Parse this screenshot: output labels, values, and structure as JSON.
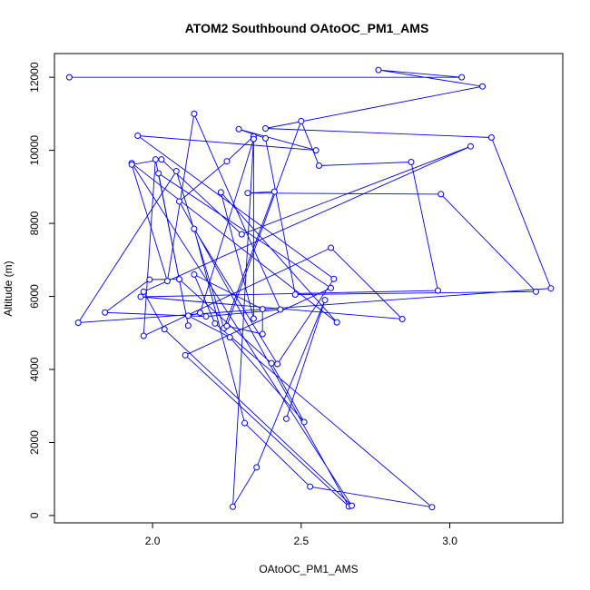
{
  "chart_data": {
    "type": "scatter",
    "title": "ATOM2 Southbound OAtoOC_PM1_AMS",
    "xlabel": "OAtoOC_PM1_AMS",
    "ylabel": "Altitude (m)",
    "xlim": [
      1.67,
      3.38
    ],
    "ylim": [
      -200,
      12650
    ],
    "xticks": [
      2.0,
      2.5,
      3.0
    ],
    "xtick_labels": [
      "2.0",
      "2.5",
      "3.0"
    ],
    "yticks": [
      0,
      2000,
      4000,
      6000,
      8000,
      10000,
      12000
    ],
    "ytick_labels": [
      "0",
      "2000",
      "4000",
      "6000",
      "8000",
      "10000",
      "12000"
    ],
    "grid": false,
    "legend": "none",
    "line_color": "#0000ff",
    "marker": "open-circle",
    "series": [
      {
        "x": [
          1.72,
          3.04,
          2.76,
          3.11,
          2.38,
          3.14,
          3.34,
          1.75,
          2.08,
          2.24,
          2.41,
          2.32,
          2.97,
          3.29,
          2.48,
          2.38,
          2.29,
          2.55,
          1.95,
          2.61,
          2.42,
          2.14,
          2.31,
          2.53,
          2.94,
          2.21,
          2.14,
          2.37,
          2.37,
          2.25,
          2.5,
          2.56,
          2.87,
          2.96,
          1.96,
          2.84,
          2.6,
          1.97,
          2.01,
          2.12,
          2.02,
          2.6,
          2.11,
          2.66,
          2.09,
          2.25,
          2.34,
          2.34,
          2.23,
          2.62,
          1.93,
          2.67,
          2.04,
          1.97,
          3.07,
          2.3,
          2.03,
          1.93,
          2.05,
          2.14,
          2.43,
          2.18,
          1.84,
          1.99,
          2.09,
          2.4,
          2.51,
          2.26,
          2.12,
          2.16,
          2.34,
          2.27,
          2.35,
          2.58,
          2.45
        ],
        "y": [
          12000,
          12000,
          12200,
          11750,
          10600,
          10350,
          6220,
          5280,
          9430,
          5130,
          8870,
          8830,
          8800,
          6130,
          6050,
          10330,
          10580,
          10000,
          10400,
          6480,
          4150,
          7850,
          2530,
          790,
          230,
          5260,
          6600,
          5650,
          4970,
          5190,
          10800,
          9580,
          9680,
          6160,
          5990,
          5380,
          7330,
          4920,
          9750,
          5200,
          9370,
          6230,
          4390,
          250,
          8600,
          9700,
          10380,
          5390,
          8850,
          5290,
          9650,
          270,
          5100,
          6130,
          10110,
          7700,
          9750,
          9610,
          6420,
          11000,
          5640,
          5450,
          5560,
          6460,
          6470,
          4170,
          2560,
          4880,
          5470,
          5550,
          10310,
          240,
          1320,
          5900,
          2650
        ]
      }
    ]
  }
}
